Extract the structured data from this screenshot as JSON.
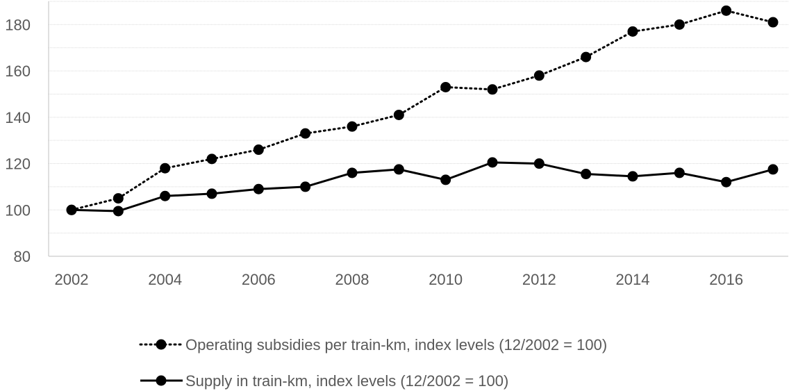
{
  "chart_data": {
    "type": "line",
    "x": [
      2002,
      2003,
      2004,
      2005,
      2006,
      2007,
      2008,
      2009,
      2010,
      2011,
      2012,
      2013,
      2014,
      2015,
      2016,
      2017
    ],
    "series": [
      {
        "name": "Operating subsidies per train-km, index levels (12/2002 = 100)",
        "line_style": "dotted",
        "values": [
          100,
          105,
          118,
          122,
          126,
          133,
          136,
          141,
          153,
          152,
          158,
          166,
          177,
          180,
          186,
          181
        ]
      },
      {
        "name": "Supply in train-km, index levels (12/2002 = 100)",
        "line_style": "solid",
        "values": [
          100,
          99.5,
          106,
          107,
          109,
          110,
          116,
          117.5,
          113,
          120.5,
          120,
          115.5,
          114.5,
          116,
          112,
          117.5
        ]
      }
    ],
    "xticks": [
      "2002",
      "2004",
      "2006",
      "2008",
      "2010",
      "2012",
      "2014",
      "2016"
    ],
    "yticks": [
      "80",
      "100",
      "120",
      "140",
      "160",
      "180"
    ],
    "xlim": [
      2002,
      2017
    ],
    "ylim": [
      80,
      190
    ],
    "grid": true,
    "legend_position": "bottom",
    "colors": {
      "series": "#000000",
      "grid": "#d9d9d9",
      "text": "#595959",
      "axis": "#bfbfbf"
    }
  }
}
